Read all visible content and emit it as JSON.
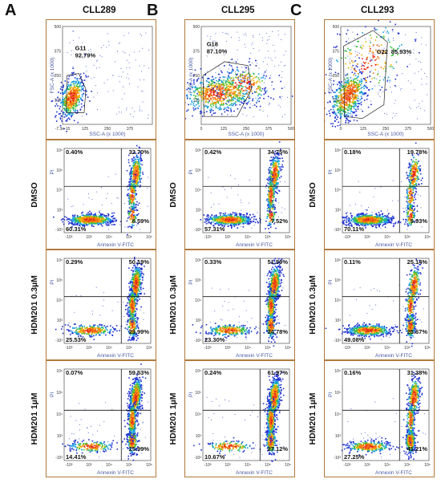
{
  "columns": [
    {
      "letter": "A",
      "title": "CLL289"
    },
    {
      "letter": "B",
      "title": "CLL295"
    },
    {
      "letter": "C",
      "title": "CLL293"
    }
  ],
  "row_labels": [
    "DMSO",
    "HDM201 0.3µM",
    "HDM201 1µM"
  ],
  "chart_data": [
    {
      "type": "scatter",
      "panel": "CLL289 gating",
      "xlabel": "SSC-A (x 1000)",
      "ylabel": "FSC-A (x 1000)",
      "gate": "G11",
      "gate_percent": "92.79%",
      "x_ticks": [
        "-7.3e-15",
        "125",
        "250",
        "375"
      ],
      "y_ticks": [
        "125",
        "250",
        "375",
        "500"
      ],
      "xlim": [
        0,
        500
      ],
      "ylim": [
        0,
        500
      ]
    },
    {
      "type": "scatter",
      "panel": "CLL295 gating",
      "xlabel": "SSC-A (x 1000)",
      "ylabel": "FSC-A (x 1000)",
      "gate": "G18",
      "gate_percent": "87.10%",
      "x_ticks": [
        "0",
        "125",
        "250",
        "375",
        "500"
      ],
      "y_ticks": [
        "125",
        "250",
        "375",
        "500"
      ],
      "xlim": [
        0,
        500
      ],
      "ylim": [
        0,
        500
      ]
    },
    {
      "type": "scatter",
      "panel": "CLL293 gating",
      "xlabel": "SSC-A (x 1000)",
      "ylabel": "FSC-A (x 1000)",
      "gate": "G22",
      "gate_percent": "85.93%",
      "x_ticks": [
        "0",
        "125",
        "250",
        "375",
        "500"
      ],
      "y_ticks": [
        "125",
        "250",
        "375",
        "500"
      ],
      "xlim": [
        0,
        500
      ],
      "ylim": [
        0,
        500
      ]
    },
    {
      "type": "scatter",
      "panel": "CLL289 DMSO",
      "xlabel": "Annexin V-FITC",
      "ylabel": "PI",
      "quadrants": {
        "UL": "0.40%",
        "UR": "32.70%",
        "LL": "60.31%",
        "LR": "6.59%"
      }
    },
    {
      "type": "scatter",
      "panel": "CLL295 DMSO",
      "xlabel": "Annexin V-FITC",
      "ylabel": "PI",
      "quadrants": {
        "UL": "0.42%",
        "UR": "34.75%",
        "LL": "57.31%",
        "LR": "7.52%"
      }
    },
    {
      "type": "scatter",
      "panel": "CLL293 DMSO",
      "xlabel": "Annexin V-FITC",
      "ylabel": "PI",
      "quadrants": {
        "UL": "0.18%",
        "UR": "19.78%",
        "LL": "70.11%",
        "LR": "9.93%"
      }
    },
    {
      "type": "scatter",
      "panel": "CLL289 HDM201 0.3µM",
      "xlabel": "Annexin V-FITC",
      "ylabel": "PI",
      "quadrants": {
        "UL": "0.29%",
        "UR": "50.19%",
        "LL": "25.53%",
        "LR": "23.99%"
      }
    },
    {
      "type": "scatter",
      "panel": "CLL295 HDM201 0.3µM",
      "xlabel": "Annexin V-FITC",
      "ylabel": "PI",
      "quadrants": {
        "UL": "0.33%",
        "UR": "51.59%",
        "LL": "23.30%",
        "LR": "24.78%"
      }
    },
    {
      "type": "scatter",
      "panel": "CLL293 HDM201 0.3µM",
      "xlabel": "Annexin V-FITC",
      "ylabel": "PI",
      "quadrants": {
        "UL": "0.11%",
        "UR": "25.14%",
        "LL": "49.08%",
        "LR": "25.67%"
      }
    },
    {
      "type": "scatter",
      "panel": "CLL289 HDM201 1µM",
      "xlabel": "Annexin V-FITC",
      "ylabel": "PI",
      "quadrants": {
        "UL": "0.07%",
        "UR": "59.53%",
        "LL": "14.41%",
        "LR": "25.99%"
      }
    },
    {
      "type": "scatter",
      "panel": "CLL295 HDM201 1µM",
      "xlabel": "Annexin V-FITC",
      "ylabel": "PI",
      "quadrants": {
        "UL": "0.24%",
        "UR": "61.97%",
        "LL": "10.67%",
        "LR": "27.12%"
      }
    },
    {
      "type": "scatter",
      "panel": "CLL293 HDM201 1µM",
      "xlabel": "Annexin V-FITC",
      "ylabel": "PI",
      "quadrants": {
        "UL": "0.16%",
        "UR": "31.38%",
        "LL": "27.25%",
        "LR": "41.21%"
      }
    }
  ],
  "log_ticks": {
    "x": [
      "-10³",
      "10³",
      "10⁴",
      "10⁵",
      "10⁶"
    ],
    "y": [
      "10⁶",
      "10⁵",
      "10⁴",
      "10³",
      "-10³"
    ]
  },
  "colors": {
    "border": "#b07a3c",
    "axis_text": "#4a5aa0",
    "hot": "#e8201a",
    "warm": "#f5b000",
    "mid": "#3cc03c",
    "cool": "#1aa0e0",
    "cold": "#2030d0"
  }
}
